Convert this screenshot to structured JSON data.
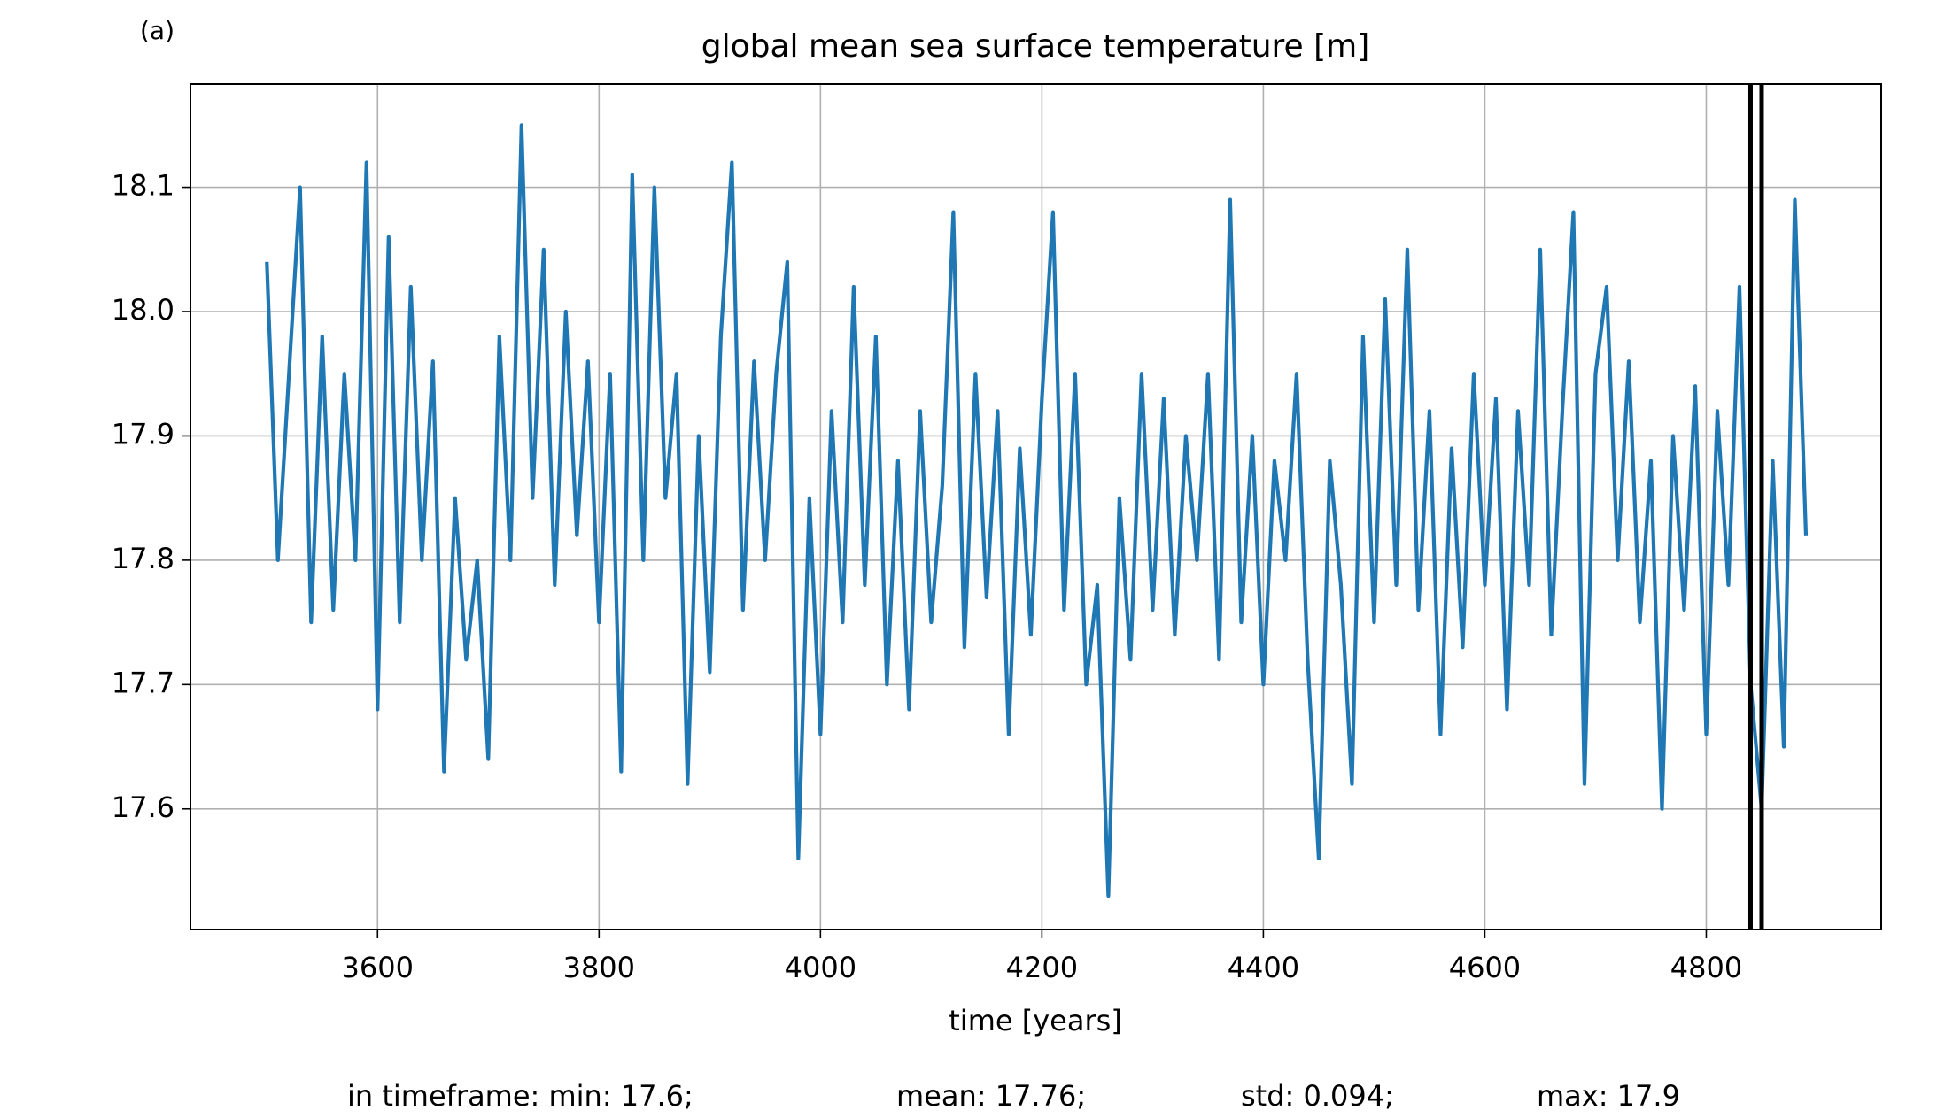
{
  "chart_data": {
    "type": "line",
    "panel_label": "(a)",
    "title": "global mean sea surface temperature [m]",
    "x_label": "time [years]",
    "footer": [
      "in timeframe: min: 17.6;",
      "mean: 17.76;",
      "std: 0.094;",
      "max: 17.9"
    ],
    "color": "#1f77b4",
    "grid": true,
    "x": [
      3500,
      3510,
      3520,
      3530,
      3540,
      3550,
      3560,
      3570,
      3580,
      3590,
      3600,
      3610,
      3620,
      3630,
      3640,
      3650,
      3660,
      3670,
      3680,
      3690,
      3700,
      3710,
      3720,
      3730,
      3740,
      3750,
      3760,
      3770,
      3780,
      3790,
      3800,
      3810,
      3820,
      3830,
      3840,
      3850,
      3860,
      3870,
      3880,
      3890,
      3900,
      3910,
      3920,
      3930,
      3940,
      3950,
      3960,
      3970,
      3980,
      3990,
      4000,
      4010,
      4020,
      4030,
      4040,
      4050,
      4060,
      4070,
      4080,
      4090,
      4100,
      4110,
      4120,
      4130,
      4140,
      4150,
      4160,
      4170,
      4180,
      4190,
      4200,
      4210,
      4220,
      4230,
      4240,
      4250,
      4260,
      4270,
      4280,
      4290,
      4300,
      4310,
      4320,
      4330,
      4340,
      4350,
      4360,
      4370,
      4380,
      4390,
      4400,
      4410,
      4420,
      4430,
      4440,
      4450,
      4460,
      4470,
      4480,
      4490,
      4500,
      4510,
      4520,
      4530,
      4540,
      4550,
      4560,
      4570,
      4580,
      4590,
      4600,
      4610,
      4620,
      4630,
      4640,
      4650,
      4660,
      4670,
      4680,
      4690,
      4700,
      4710,
      4720,
      4730,
      4740,
      4750,
      4760,
      4770,
      4780,
      4790,
      4800,
      4810,
      4820,
      4830,
      4840,
      4850,
      4860,
      4870,
      4880,
      4890
    ],
    "values": [
      18.04,
      17.8,
      17.95,
      18.1,
      17.75,
      17.98,
      17.76,
      17.95,
      17.8,
      18.12,
      17.68,
      18.06,
      17.75,
      18.02,
      17.8,
      17.96,
      17.63,
      17.85,
      17.72,
      17.8,
      17.64,
      17.98,
      17.8,
      18.15,
      17.85,
      18.05,
      17.78,
      18.0,
      17.82,
      17.96,
      17.75,
      17.95,
      17.63,
      18.11,
      17.8,
      18.1,
      17.85,
      17.95,
      17.62,
      17.9,
      17.71,
      17.98,
      18.12,
      17.76,
      17.96,
      17.8,
      17.95,
      18.04,
      17.56,
      17.85,
      17.66,
      17.92,
      17.75,
      18.02,
      17.78,
      17.98,
      17.7,
      17.88,
      17.68,
      17.92,
      17.75,
      17.86,
      18.08,
      17.73,
      17.95,
      17.77,
      17.92,
      17.66,
      17.89,
      17.74,
      17.93,
      18.08,
      17.76,
      17.95,
      17.7,
      17.78,
      17.53,
      17.85,
      17.72,
      17.95,
      17.76,
      17.93,
      17.74,
      17.9,
      17.8,
      17.95,
      17.72,
      18.09,
      17.75,
      17.9,
      17.7,
      17.88,
      17.8,
      17.95,
      17.72,
      17.56,
      17.88,
      17.78,
      17.62,
      17.98,
      17.75,
      18.01,
      17.78,
      18.05,
      17.76,
      17.92,
      17.66,
      17.89,
      17.73,
      17.95,
      17.78,
      17.93,
      17.68,
      17.92,
      17.78,
      18.05,
      17.74,
      17.92,
      18.08,
      17.62,
      17.95,
      18.02,
      17.8,
      17.96,
      17.75,
      17.88,
      17.6,
      17.9,
      17.76,
      17.94,
      17.66,
      17.92,
      17.78,
      18.02,
      17.7,
      17.6,
      17.88,
      17.65,
      18.09,
      17.82
    ],
    "vlines": [
      4840,
      4850
    ],
    "vline_color": "#000000",
    "xlim": [
      3431,
      4958
    ],
    "ylim": [
      17.503,
      18.183
    ],
    "xticks": [
      3600,
      3800,
      4000,
      4200,
      4400,
      4600,
      4800
    ],
    "yticks": [
      17.6,
      17.7,
      17.8,
      17.9,
      {
        "value": 18,
        "label": "18.0"
      },
      18.1
    ]
  }
}
